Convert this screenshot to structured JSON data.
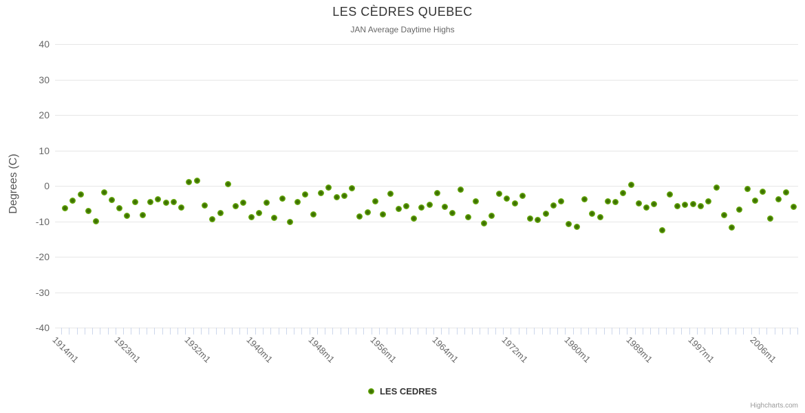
{
  "title": "LES CÈDRES QUEBEC",
  "subtitle": "JAN Average Daytime Highs",
  "y_axis_title": "Degrees (C)",
  "legend": {
    "series_label": "LES CEDRES"
  },
  "watermark": "Highcharts.com",
  "colors": {
    "point_outer": "#76B81C",
    "point_inner": "#3E7102",
    "gridline": "#e6e6e6",
    "axis_tick": "#ccd6eb",
    "title": "#333333",
    "subtitle": "#666666",
    "axis_label": "#666666"
  },
  "chart_data": {
    "type": "scatter",
    "title": "LES CÈDRES QUEBEC",
    "subtitle": "JAN Average Daytime Highs",
    "xlabel": "",
    "ylabel": "Degrees (C)",
    "ylim": [
      -40,
      40
    ],
    "y_ticks": [
      40,
      30,
      20,
      10,
      0,
      -10,
      -20,
      -30,
      -40
    ],
    "x_tick_labels": [
      "1914m1",
      "1923m1",
      "1932m1",
      "1940m1",
      "1948m1",
      "1956m1",
      "1964m1",
      "1972m1",
      "1980m1",
      "1989m1",
      "1997m1",
      "2006m1"
    ],
    "x_tick_indices": [
      0,
      8,
      17,
      25,
      33,
      41,
      49,
      58,
      66,
      74,
      82,
      90
    ],
    "grid": "horizontal",
    "legend_position": "bottom-center",
    "marker": "circle",
    "series": [
      {
        "name": "LES CEDRES",
        "color": "#6BAE0D",
        "values": [
          -6.3,
          -4.1,
          -2.5,
          -7.0,
          -10.0,
          -1.9,
          -3.9,
          -6.3,
          -8.4,
          -4.5,
          -8.2,
          -4.5,
          -3.7,
          -4.7,
          -4.5,
          -6.1,
          1.0,
          1.4,
          -5.6,
          -9.4,
          -7.6,
          0.5,
          -5.8,
          -4.7,
          -8.8,
          -7.6,
          -4.8,
          -9.1,
          -3.6,
          -10.2,
          -4.6,
          -2.4,
          -8.0,
          -2.1,
          -0.5,
          -3.2,
          -2.9,
          -0.7,
          -8.6,
          -7.4,
          -4.3,
          -8.1,
          -2.3,
          -6.5,
          -5.8,
          -9.3,
          -6.2,
          -5.4,
          -2.1,
          -6.0,
          -7.6,
          -1.1,
          -8.9,
          -4.4,
          -10.5,
          -8.4,
          -2.2,
          -3.6,
          -4.9,
          -2.9,
          -9.3,
          -9.6,
          -7.8,
          -5.6,
          -4.3,
          -10.7,
          -11.5,
          -3.8,
          -7.8,
          -8.8,
          -4.4,
          -4.5,
          -2.1,
          0.3,
          -4.9,
          -6.2,
          -5.2,
          -12.6,
          -2.4,
          -5.8,
          -5.3,
          -5.2,
          -5.7,
          -4.3,
          -0.5,
          -8.3,
          -11.7,
          -6.7,
          -0.9,
          -4.1,
          -1.6,
          -9.2,
          -3.8,
          -1.9,
          -5.9
        ]
      }
    ]
  }
}
